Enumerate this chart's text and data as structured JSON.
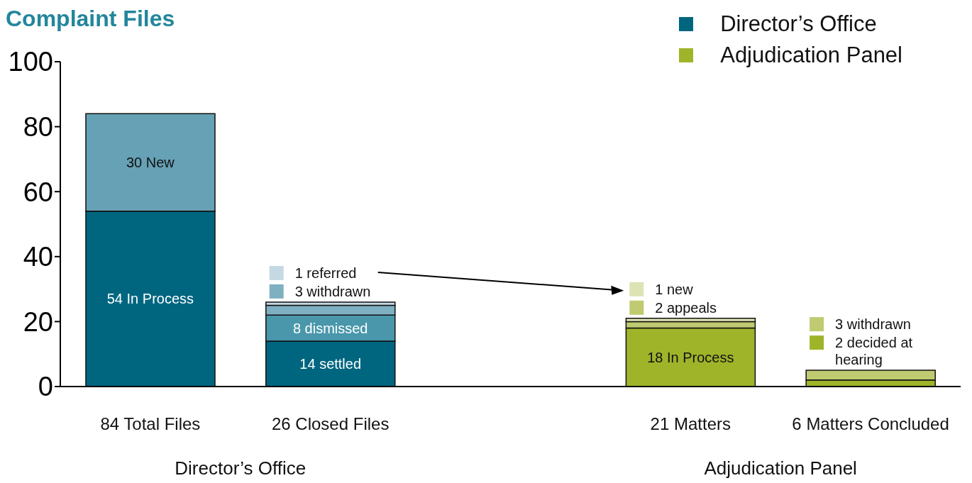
{
  "chart_data": {
    "type": "bar",
    "title": "Complaint Files",
    "stacked": true,
    "categories": [
      "84 Total Files",
      "26 Closed Files",
      null,
      "21 Matters",
      "6 Matters Concluded"
    ],
    "series": [
      {
        "name": "Director’s Office",
        "color": "#006680",
        "values": [
          54,
          14,
          null,
          null,
          null
        ],
        "value_labels": [
          "54 In Process",
          "14 settled",
          null,
          null,
          null
        ]
      },
      {
        "name": "Adjudication Panel",
        "color": "#a0b42a",
        "values": [
          null,
          null,
          null,
          18,
          2
        ],
        "value_labels": [
          null,
          null,
          null,
          "18 In Process",
          "2 decided at hearing"
        ]
      },
      {
        "colors": [
          "#66a1b5",
          "#4a97ab",
          null,
          "#c0ca70",
          "#c0ca70"
        ],
        "values": [
          30,
          8,
          null,
          2,
          3
        ],
        "value_labels": [
          "30 New",
          "8 dismissed",
          null,
          "2 appeals",
          "3 withdrawn"
        ]
      },
      {
        "colors": [
          null,
          "#7fb0c1",
          null,
          "#dde3b4",
          null
        ],
        "values": [
          null,
          3,
          null,
          1,
          null
        ],
        "value_labels": [
          null,
          "3 withdrawn",
          null,
          "1 new",
          null
        ]
      },
      {
        "colors": [
          null,
          "#c5d9e3",
          null,
          null,
          null
        ],
        "values": [
          null,
          1,
          null,
          null,
          null
        ],
        "value_labels": [
          null,
          "1 referred",
          null,
          null,
          null
        ]
      }
    ],
    "ylim": [
      0,
      100
    ],
    "yticks": [
      0,
      20,
      40,
      60,
      80,
      100
    ],
    "grid": false,
    "legend": "top right",
    "annotations": [
      "Director’s Office",
      "Adjudication Panel"
    ]
  }
}
